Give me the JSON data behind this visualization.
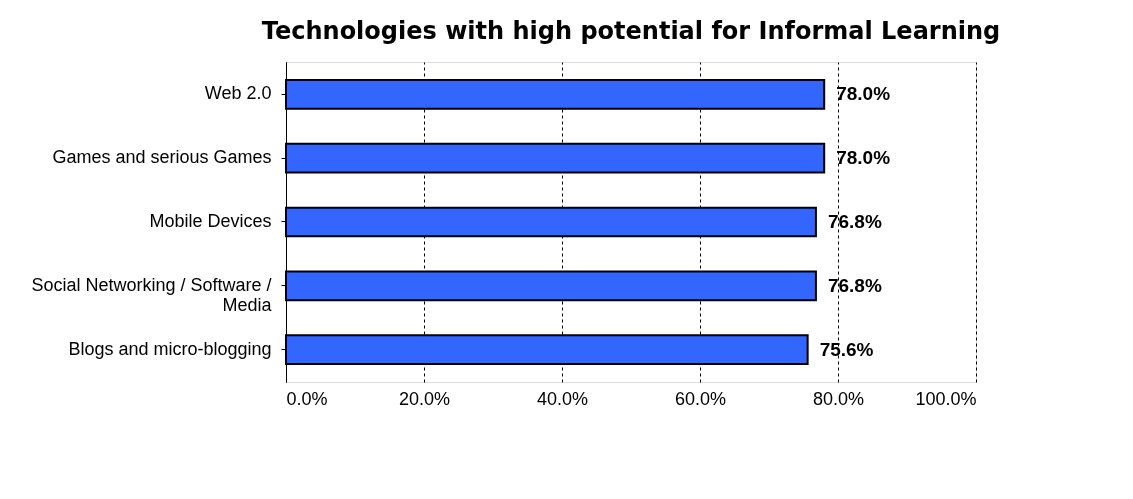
{
  "chart_data": {
    "type": "bar",
    "orientation": "horizontal",
    "title": "Technologies with high potential for Informal Learning",
    "categories": [
      "Web 2.0",
      "Games and serious Games",
      "Mobile Devices",
      "Social Networking / Software / Media",
      "Blogs and micro-blogging"
    ],
    "values": [
      78.0,
      78.0,
      76.8,
      76.8,
      75.6
    ],
    "value_labels": [
      "78.0%",
      "78.0%",
      "76.8%",
      "76.8%",
      "75.6%"
    ],
    "color": "#3366ff",
    "xlim": [
      0,
      100
    ],
    "xticks": [
      {
        "value": 0,
        "label": "0.0%"
      },
      {
        "value": 20,
        "label": "20.0%"
      },
      {
        "value": 40,
        "label": "40.0%"
      },
      {
        "value": 60,
        "label": "60.0%"
      },
      {
        "value": 80,
        "label": "80.0%"
      },
      {
        "value": 100,
        "label": "100.0%"
      }
    ],
    "grid": "x"
  }
}
